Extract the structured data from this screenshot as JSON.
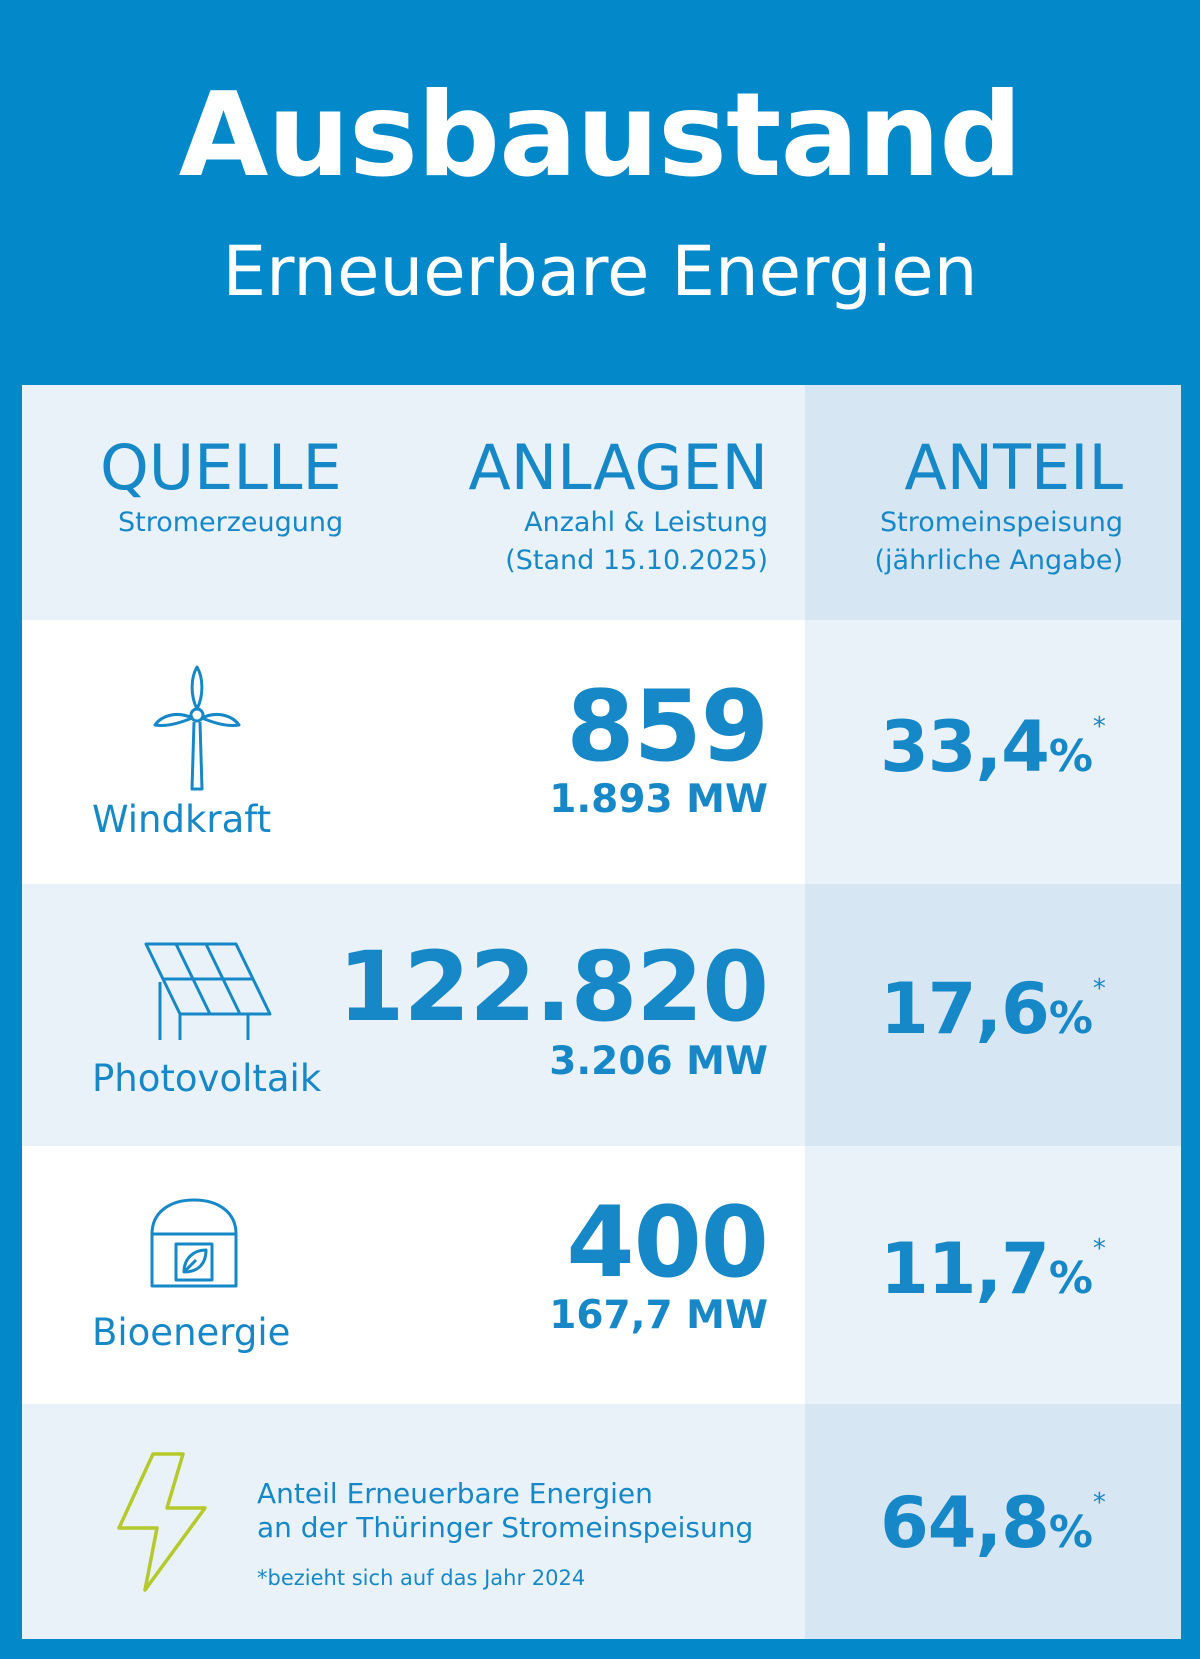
{
  "header": {
    "title": "Ausbaustand",
    "subtitle": "Erneuerbare Energien"
  },
  "columns": {
    "source": {
      "title": "QUELLE",
      "caption": "Stromerzeugung"
    },
    "installations": {
      "title": "ANLAGEN",
      "caption_1": "Anzahl & Leistung",
      "caption_2": "(Stand 15.10.2025)"
    },
    "share": {
      "title": "ANTEIL",
      "caption_1": "Stromeinspeisung",
      "caption_2": "(jährliche Angabe)"
    }
  },
  "rows": [
    {
      "label": "Windkraft",
      "icon": "wind-turbine-icon",
      "count": "859",
      "capacity": "1.893 MW",
      "share_value": "33,4",
      "share_unit": "%",
      "share_mark": "*"
    },
    {
      "label": "Photovoltaik",
      "icon": "solar-panel-icon",
      "count": "122.820",
      "capacity": "3.206 MW",
      "share_value": "17,6",
      "share_unit": "%",
      "share_mark": "*"
    },
    {
      "label": "Bioenergie",
      "icon": "biogas-plant-icon",
      "count": "400",
      "capacity": "167,7 MW",
      "share_value": "11,7",
      "share_unit": "%",
      "share_mark": "*"
    }
  ],
  "footer": {
    "icon": "lightning-bolt-icon",
    "text_1": "Anteil Erneuerbare Energien",
    "text_2": "an der Thüringer Stromeinspeisung",
    "note": "*bezieht sich auf das Jahr 2024",
    "share_value": "64,8",
    "share_unit": "%",
    "share_mark": "*"
  },
  "colors": {
    "background": "#0388c9",
    "text_blue": "#1788c7",
    "panel_light": "#e9f2f9",
    "panel_dark": "#d6e7f3",
    "bolt_green": "#b5c92a"
  }
}
